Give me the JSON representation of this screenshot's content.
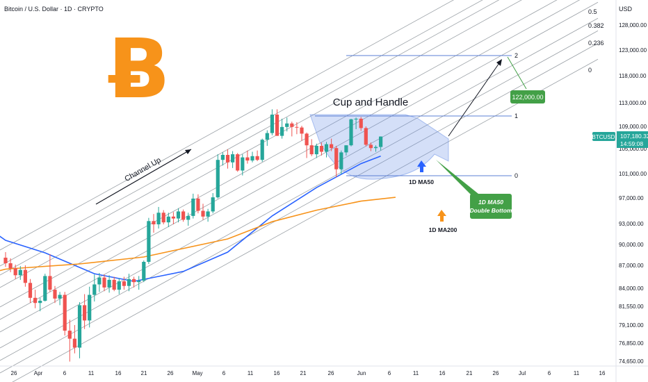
{
  "header": {
    "title": "Bitcoin / U.S. Dollar · 1D · CRYPTO",
    "currency": "USD"
  },
  "colors": {
    "up": "#26a69a",
    "down": "#ef5350",
    "ma50": "#2962ff",
    "ma200": "#f7931a",
    "callout": "#43a047",
    "fib": "#7e96c9",
    "logo": "#f7931a"
  },
  "icons": {
    "logo": "bitcoin-logo",
    "ma50_marker": "arrow-up",
    "ma200_marker": "arrow-up"
  },
  "chart_data": {
    "type": "candlestick",
    "symbol": "BTCUSD",
    "last_price": "107,180.32",
    "countdown": "14:59:08",
    "ylim": [
      74650,
      128000
    ],
    "y_ticks": [
      "128,000.00",
      "123,000.00",
      "118,000.00",
      "113,000.00",
      "109,000.00",
      "105,000.00",
      "101,000.00",
      "97,000.00",
      "93,000.00",
      "90,000.00",
      "87,000.00",
      "84,000.00",
      "81,550.00",
      "79,100.00",
      "76,850.00",
      "74,650.00"
    ],
    "x_ticks": [
      "26",
      "Apr",
      "6",
      "11",
      "16",
      "21",
      "26",
      "May",
      "6",
      "11",
      "16",
      "21",
      "26",
      "Jun",
      "6",
      "11",
      "16",
      "21",
      "26",
      "Jul",
      "6",
      "11",
      "16"
    ],
    "ohlc": [
      [
        88100,
        88900,
        86800,
        87300
      ],
      [
        87300,
        88000,
        86100,
        86600
      ],
      [
        86600,
        87100,
        85200,
        85700
      ],
      [
        85700,
        86900,
        85100,
        86400
      ],
      [
        86400,
        87000,
        84200,
        84700
      ],
      [
        84700,
        85200,
        82000,
        82700
      ],
      [
        82700,
        83800,
        81300,
        82000
      ],
      [
        82000,
        82700,
        80900,
        82300
      ],
      [
        82300,
        85900,
        82200,
        85600
      ],
      [
        85600,
        88600,
        83500,
        83800
      ],
      [
        83800,
        84300,
        82000,
        82600
      ],
      [
        82600,
        83500,
        81700,
        83100
      ],
      [
        83100,
        83500,
        77800,
        78400
      ],
      [
        78400,
        79800,
        74600,
        77400
      ],
      [
        77400,
        79100,
        75600,
        76300
      ],
      [
        76300,
        82100,
        75000,
        81700
      ],
      [
        81700,
        83200,
        78600,
        79700
      ],
      [
        79700,
        84200,
        78800,
        83100
      ],
      [
        83100,
        85800,
        82200,
        84500
      ],
      [
        84500,
        86000,
        83500,
        85400
      ],
      [
        85400,
        85800,
        83600,
        84100
      ],
      [
        84100,
        85700,
        83400,
        85100
      ],
      [
        85100,
        85500,
        83600,
        83800
      ],
      [
        83800,
        85300,
        83200,
        84900
      ],
      [
        84900,
        85500,
        83800,
        84300
      ],
      [
        84300,
        85900,
        83600,
        85200
      ],
      [
        85200,
        85500,
        84100,
        84800
      ],
      [
        84800,
        85600,
        83800,
        85000
      ],
      [
        85000,
        87700,
        84800,
        87500
      ],
      [
        87500,
        93900,
        87200,
        93400
      ],
      [
        93400,
        94500,
        91700,
        92900
      ],
      [
        92900,
        95600,
        92300,
        94700
      ],
      [
        94700,
        95100,
        92900,
        93200
      ],
      [
        93200,
        94700,
        92500,
        94100
      ],
      [
        94100,
        94800,
        92900,
        93800
      ],
      [
        93800,
        95400,
        93200,
        94900
      ],
      [
        94900,
        95200,
        93300,
        93600
      ],
      [
        93600,
        94700,
        92700,
        94200
      ],
      [
        94200,
        97700,
        93800,
        96900
      ],
      [
        96900,
        97600,
        94600,
        95000
      ],
      [
        95000,
        96100,
        93600,
        94100
      ],
      [
        94100,
        95300,
        93300,
        94900
      ],
      [
        94900,
        97800,
        94600,
        97100
      ],
      [
        97100,
        104100,
        96900,
        103200
      ],
      [
        103200,
        104400,
        102300,
        104000
      ],
      [
        104000,
        104900,
        101800,
        102800
      ],
      [
        102800,
        104600,
        101900,
        104100
      ],
      [
        104100,
        104300,
        101300,
        101500
      ],
      [
        101500,
        104100,
        100700,
        103600
      ],
      [
        103600,
        104700,
        102600,
        103100
      ],
      [
        103100,
        104500,
        102800,
        103800
      ],
      [
        103800,
        104700,
        103000,
        103200
      ],
      [
        103200,
        106800,
        102900,
        106600
      ],
      [
        106600,
        108300,
        105500,
        107800
      ],
      [
        107800,
        111900,
        107400,
        111000
      ],
      [
        111000,
        111900,
        107300,
        107300
      ],
      [
        107300,
        110300,
        106800,
        108900
      ],
      [
        108900,
        110500,
        108100,
        109500
      ],
      [
        109500,
        109800,
        107200,
        108900
      ],
      [
        108900,
        109700,
        107600,
        108800
      ],
      [
        108800,
        109100,
        106400,
        107700
      ],
      [
        107700,
        107900,
        103500,
        105600
      ],
      [
        105600,
        106700,
        103800,
        104100
      ],
      [
        104100,
        105900,
        103500,
        105500
      ],
      [
        105500,
        106100,
        103900,
        104500
      ],
      [
        104500,
        106200,
        103600,
        105800
      ],
      [
        105800,
        106800,
        104600,
        105100
      ],
      [
        105100,
        105500,
        100400,
        101700
      ],
      [
        101700,
        104700,
        100900,
        104400
      ],
      [
        104400,
        105600,
        103900,
        105600
      ],
      [
        105600,
        110300,
        105400,
        110200
      ],
      [
        110200,
        110500,
        108500,
        110300
      ],
      [
        110300,
        110600,
        108200,
        108700
      ],
      [
        108700,
        109000,
        105400,
        105700
      ],
      [
        105700,
        106100,
        104600,
        105100
      ],
      [
        105100,
        105600,
        104500,
        105300
      ],
      [
        105300,
        107200,
        104700,
        107180
      ]
    ],
    "ma50": [
      [
        0,
        90600
      ],
      [
        8,
        88800
      ],
      [
        18,
        85900
      ],
      [
        26,
        84900
      ],
      [
        36,
        86200
      ],
      [
        45,
        88900
      ],
      [
        54,
        94200
      ],
      [
        63,
        98700
      ],
      [
        72,
        102600
      ],
      [
        76,
        103800
      ]
    ],
    "ma200": [
      [
        0,
        86500
      ],
      [
        15,
        87200
      ],
      [
        28,
        88200
      ],
      [
        45,
        90800
      ],
      [
        54,
        93300
      ],
      [
        63,
        95100
      ],
      [
        72,
        96500
      ],
      [
        79,
        97100
      ]
    ],
    "labels": {
      "pattern": "Cup and Handle",
      "channel": "Channel Up",
      "target": "122,000.00",
      "ma50_label": "1D MA50",
      "ma50_callout": [
        "1D MA50",
        "Double Bottom"
      ],
      "ma200_label": "1D MA200"
    },
    "fib_channel": [
      {
        "level": "0.5",
        "y": 127900
      },
      {
        "level": "0.382",
        "y": 124700
      },
      {
        "level": "0.236",
        "y": 121400
      },
      {
        "level": "0",
        "y": 116900
      }
    ],
    "extension_levels": [
      {
        "level": "2",
        "y": 122200
      },
      {
        "level": "1",
        "y": 110500
      },
      {
        "level": "0",
        "y": 101000
      }
    ]
  }
}
